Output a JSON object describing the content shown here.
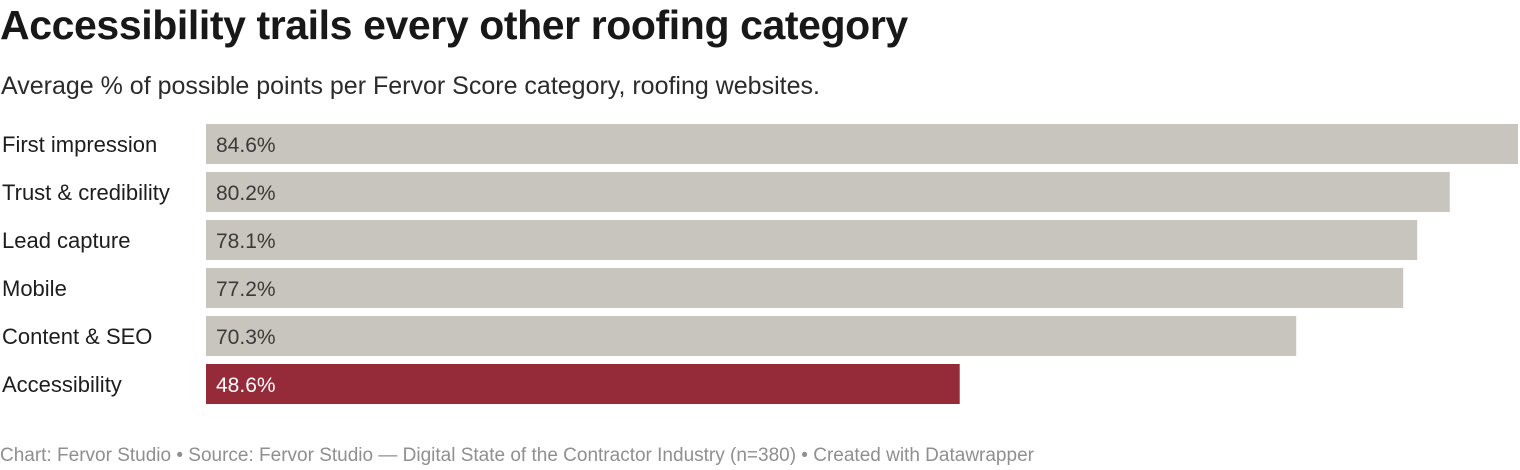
{
  "header": {
    "title": "Accessibility trails every other roofing category",
    "subtitle": "Average % of possible points per Fervor Score category, roofing websites."
  },
  "chart_data": {
    "type": "bar",
    "orientation": "horizontal",
    "categories": [
      "First impression",
      "Trust & credibility",
      "Lead capture",
      "Mobile",
      "Content & SEO",
      "Accessibility"
    ],
    "values": [
      84.6,
      80.2,
      78.1,
      77.2,
      70.3,
      48.6
    ],
    "value_labels": [
      "84.6%",
      "80.2%",
      "78.1%",
      "77.2%",
      "70.3%",
      "48.6%"
    ],
    "highlight": "Accessibility",
    "colors": {
      "default_bar": "#c8c5be",
      "highlight_bar": "#952a38",
      "default_label": "#3a3a3a",
      "highlight_label": "#ffffff"
    },
    "xlim": [
      0,
      84.6
    ],
    "grid": false,
    "legend": "none"
  },
  "footer": {
    "text": "Chart: Fervor Studio • Source: Fervor Studio — Digital State of the Contractor Industry (n=380) • Created with Datawrapper"
  }
}
